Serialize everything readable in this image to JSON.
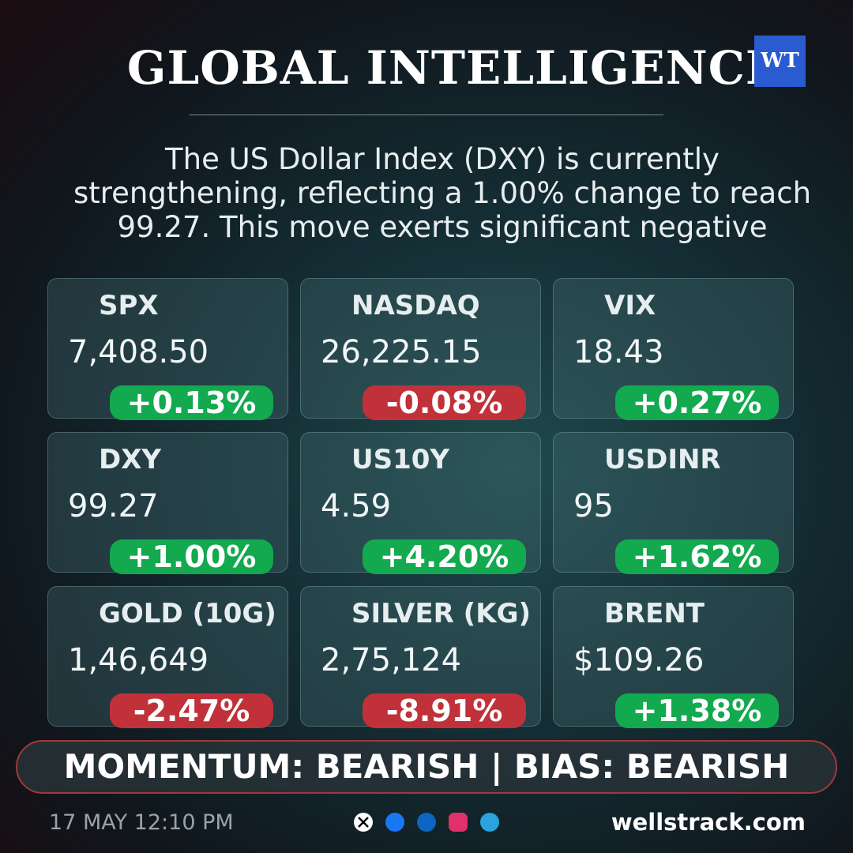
{
  "header": {
    "title": "GLOBAL INTELLIGENCE",
    "logo": "WT"
  },
  "description": "The US Dollar Index (DXY) is currently strengthening, reflecting a 1.00% change to reach 99.27. This move exerts significant negative",
  "cards": [
    {
      "name": "SPX",
      "value": "7,408.50",
      "change": "+0.13%",
      "color": "#12a94f"
    },
    {
      "name": "NASDAQ",
      "value": "26,225.15",
      "change": "-0.08%",
      "color": "#c0313a"
    },
    {
      "name": "VIX",
      "value": "18.43",
      "change": "+0.27%",
      "color": "#12a94f"
    },
    {
      "name": "DXY",
      "value": "99.27",
      "change": "+1.00%",
      "color": "#12a94f"
    },
    {
      "name": "US10Y",
      "value": "4.59",
      "change": "+4.20%",
      "color": "#12a94f"
    },
    {
      "name": "USDINR",
      "value": "95",
      "change": "+1.62%",
      "color": "#12a94f"
    },
    {
      "name": "GOLD (10G)",
      "value": "1,46,649",
      "change": "-2.47%",
      "color": "#c0313a"
    },
    {
      "name": "SILVER (KG)",
      "value": "2,75,124",
      "change": "-8.91%",
      "color": "#c0313a"
    },
    {
      "name": "BRENT",
      "value": "$109.26",
      "change": "+1.38%",
      "color": "#12a94f"
    }
  ],
  "banner": "MOMENTUM: BEARISH | BIAS: BEARISH",
  "footer": {
    "date": "17 MAY 12:10 PM",
    "site": "wellstrack.com"
  }
}
